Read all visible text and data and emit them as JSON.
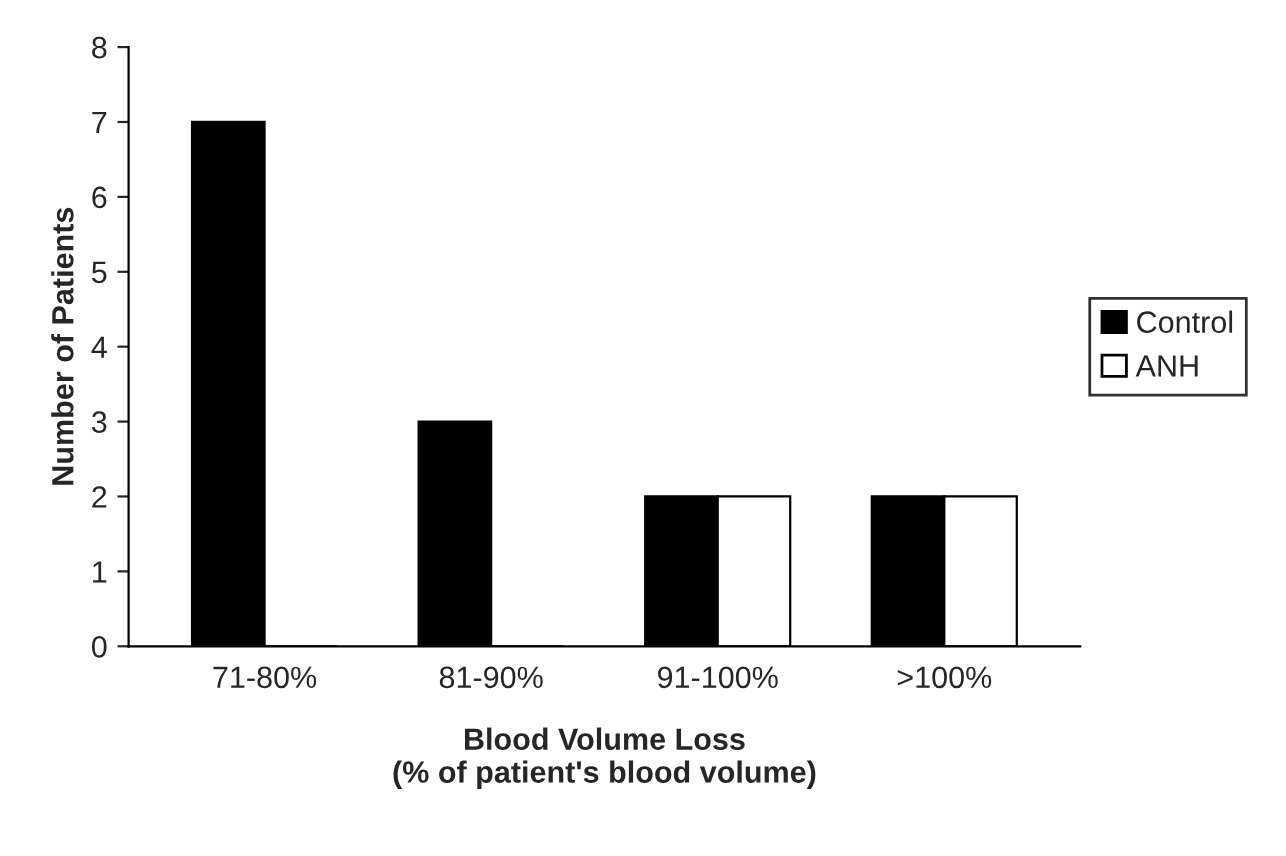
{
  "chart_data": {
    "type": "bar",
    "categories": [
      "71-80%",
      "81-90%",
      "91-100%",
      ">100%"
    ],
    "series": [
      {
        "name": "Control",
        "color": "#000000",
        "values": [
          7,
          3,
          2,
          2
        ]
      },
      {
        "name": "ANH",
        "color": "#ffffff",
        "values": [
          0,
          0,
          2,
          2
        ]
      }
    ],
    "xlabel": "Blood Volume Loss\n(% of patient's blood volume)",
    "ylabel": "Number of Patients",
    "ylim": [
      0,
      8
    ],
    "yticks": [
      0,
      1,
      2,
      3,
      4,
      5,
      6,
      7,
      8
    ],
    "grid": false,
    "legend": "right"
  }
}
